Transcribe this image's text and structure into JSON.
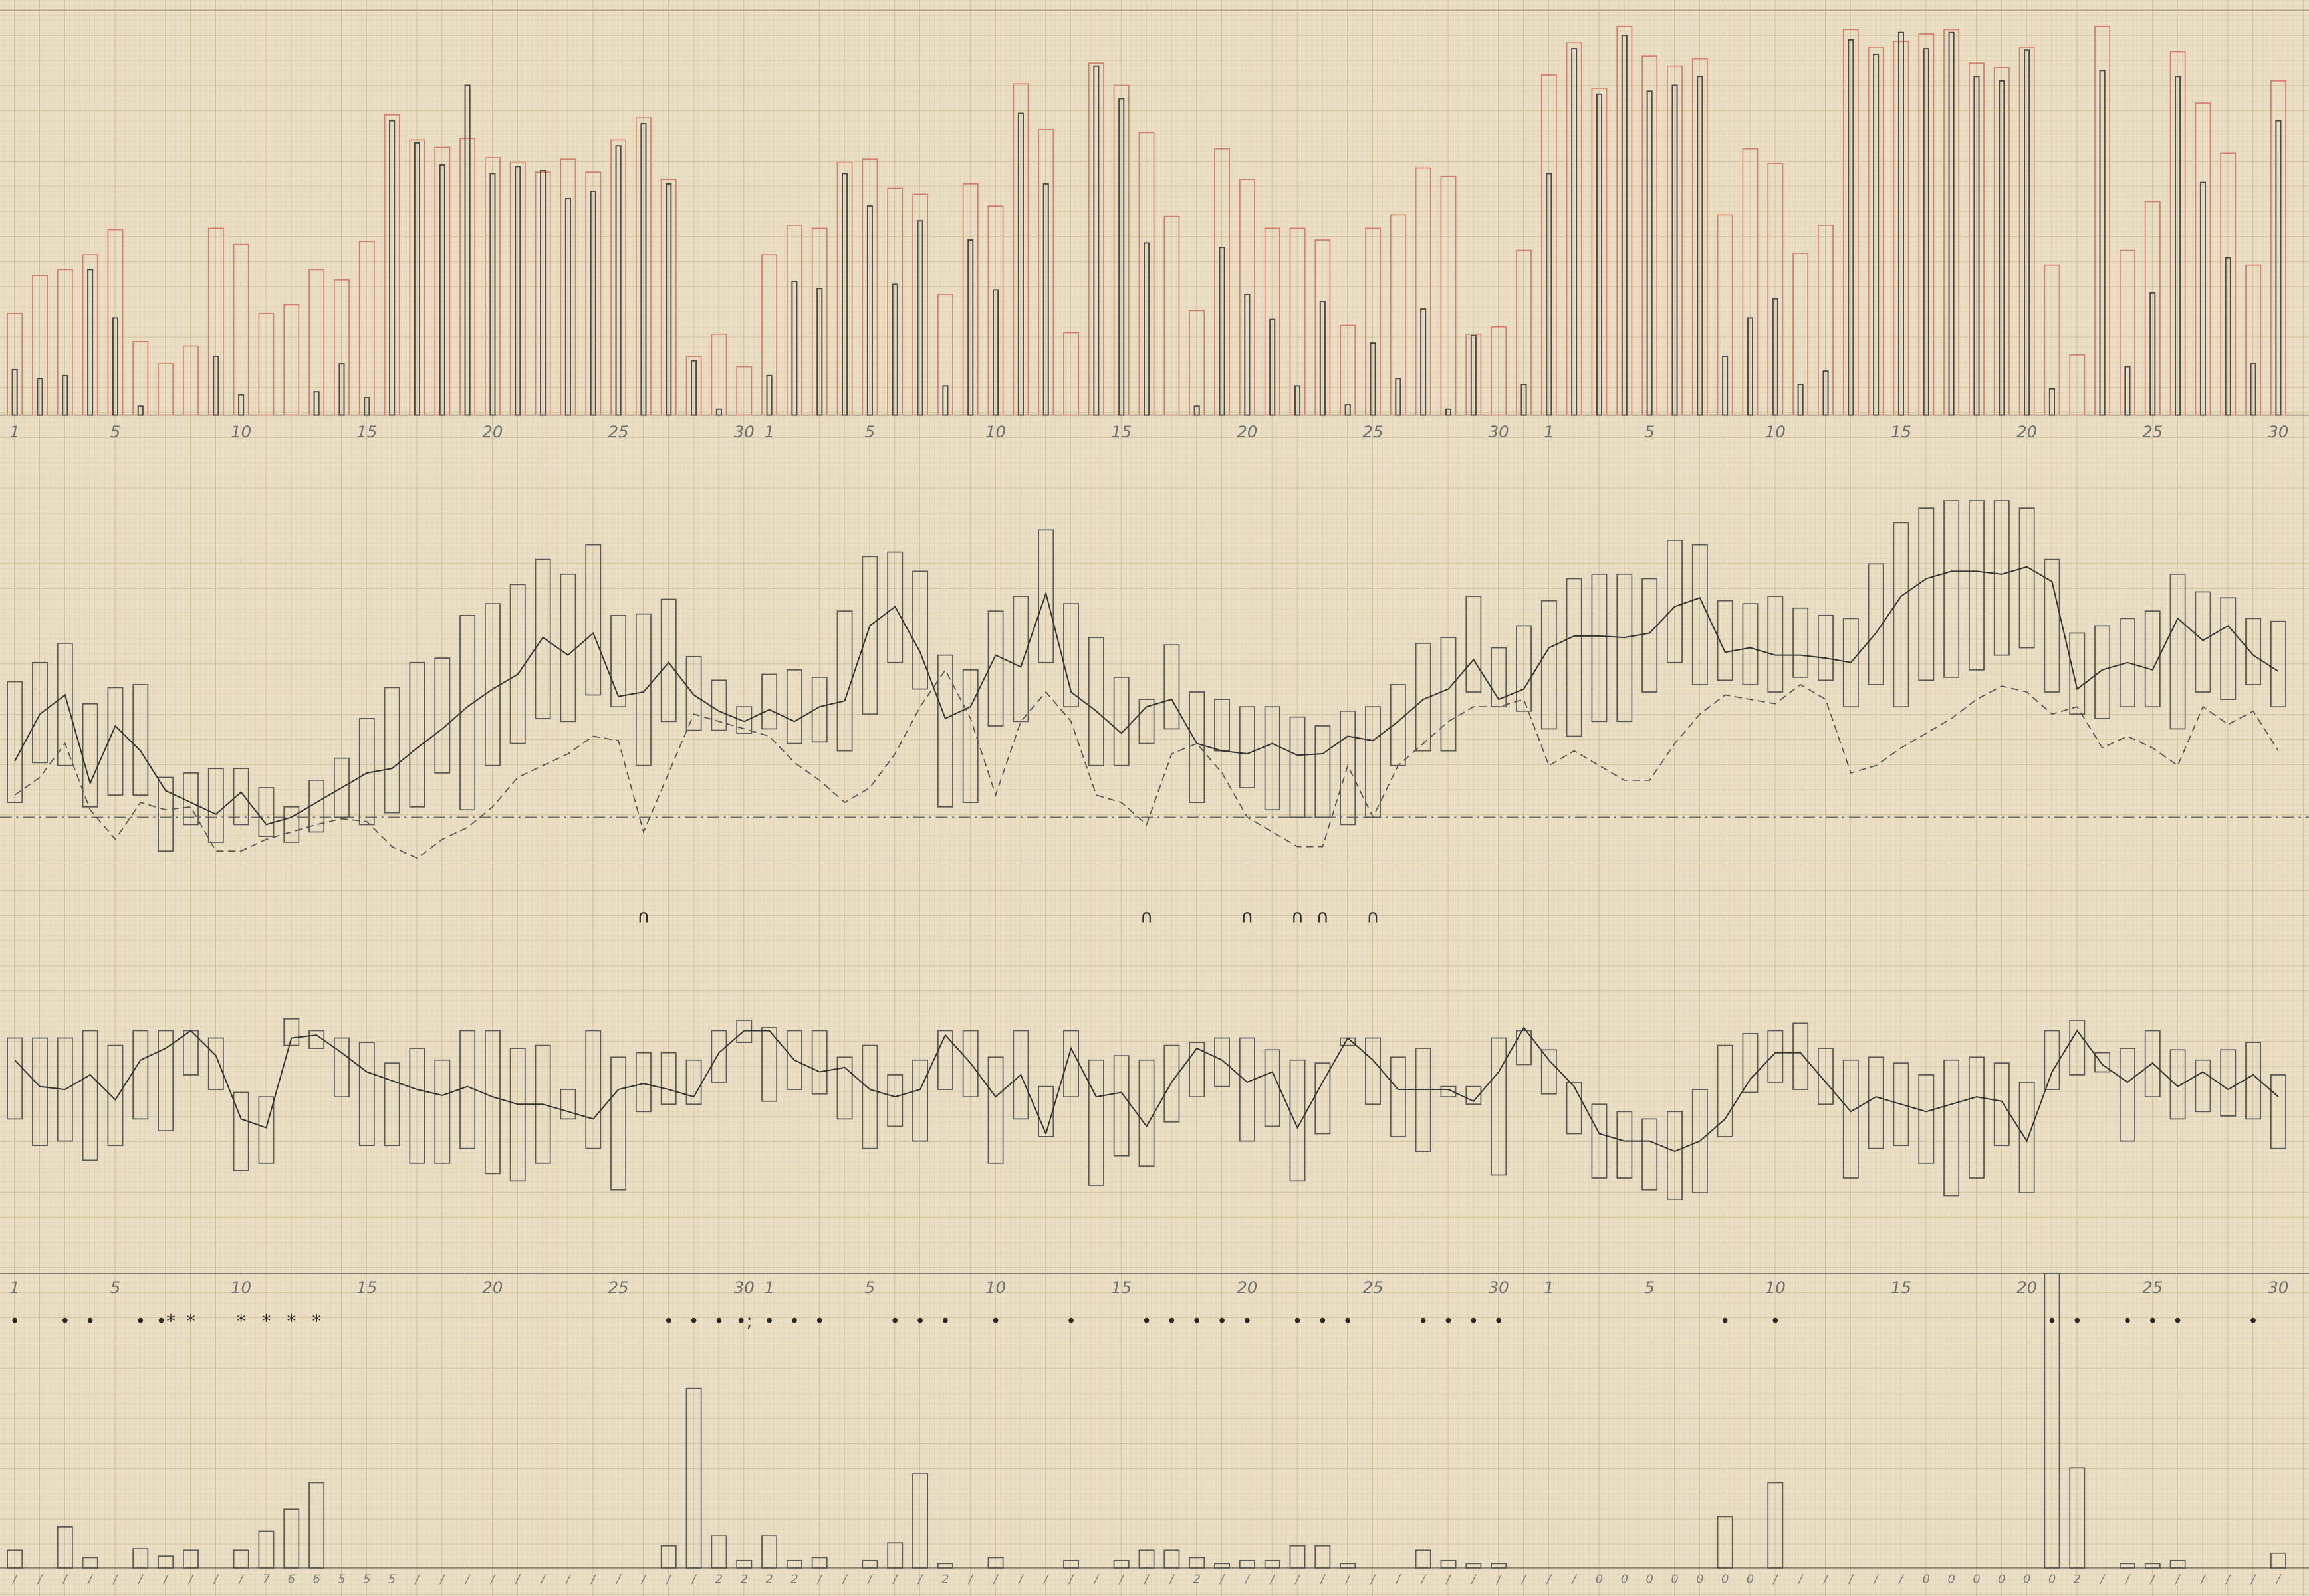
{
  "chart_data": [
    {
      "type": "bar",
      "categories": [
        1,
        null,
        null,
        null,
        5,
        null,
        null,
        null,
        null,
        10,
        null,
        null,
        null,
        null,
        15,
        null,
        null,
        null,
        null,
        20,
        null,
        null,
        null,
        null,
        25,
        null,
        null,
        null,
        null,
        30,
        1,
        null,
        null,
        null,
        5,
        null,
        null,
        null,
        null,
        10,
        null,
        null,
        null,
        null,
        15,
        null,
        null,
        null,
        null,
        20,
        null,
        null,
        null,
        null,
        25,
        null,
        null,
        null,
        null,
        30,
        null,
        1,
        null,
        null,
        null,
        5,
        null,
        null,
        null,
        null,
        10,
        null,
        null,
        null,
        null,
        15,
        null,
        null,
        null,
        null,
        20,
        null,
        null,
        null,
        null,
        25,
        null,
        null,
        null,
        null,
        30
      ],
      "series": [
        {
          "color": "#d4806f",
          "values": [
            69,
            95,
            99,
            109,
            126,
            50,
            35,
            47,
            127,
            116,
            69,
            75,
            99,
            92,
            118,
            204,
            187,
            182,
            188,
            175,
            172,
            165,
            174,
            165,
            187,
            202,
            160,
            40,
            55,
            33,
            109,
            129,
            127,
            172,
            174,
            154,
            150,
            82,
            157,
            142,
            225,
            194,
            56,
            239,
            224,
            192,
            135,
            71,
            181,
            160,
            127,
            127,
            119,
            61,
            127,
            136,
            168,
            162,
            55,
            60,
            112,
            231,
            253,
            222,
            264,
            244,
            237,
            242,
            136,
            181,
            171,
            110,
            129,
            262,
            250,
            254,
            259,
            262,
            239,
            236,
            250,
            102,
            41,
            264,
            112,
            145,
            247,
            212,
            178,
            102,
            227
          ]
        },
        {
          "color": "#4a4a4a",
          "values": [
            31,
            25,
            27,
            99,
            66,
            6,
            0,
            0,
            40,
            14,
            0,
            0,
            16,
            35,
            12,
            200,
            185,
            170,
            224,
            164,
            169,
            166,
            147,
            152,
            183,
            198,
            157,
            37,
            4,
            0,
            27,
            91,
            86,
            164,
            142,
            89,
            132,
            20,
            119,
            85,
            205,
            157,
            0,
            237,
            215,
            117,
            0,
            6,
            114,
            82,
            65,
            20,
            77,
            7,
            49,
            25,
            72,
            4,
            54,
            0,
            21,
            164,
            249,
            218,
            258,
            220,
            224,
            230,
            40,
            66,
            79,
            21,
            30,
            255,
            245,
            260,
            249,
            260,
            230,
            227,
            248,
            18,
            0,
            234,
            33,
            83,
            230,
            158,
            107,
            35,
            200
          ]
        }
      ],
      "ylim": [
        0,
        270
      ]
    },
    {
      "type": "range",
      "color": "#5a5a5a",
      "high": [
        137,
        150,
        163,
        122,
        133,
        135,
        72,
        75,
        78,
        78,
        65,
        52,
        70,
        85,
        112,
        133,
        150,
        153,
        182,
        190,
        203,
        220,
        210,
        230,
        182,
        183,
        193,
        154,
        138,
        120,
        142,
        145,
        140,
        185,
        222,
        225,
        212,
        155,
        145,
        185,
        195,
        240,
        190,
        167,
        140,
        125,
        162,
        130,
        125,
        120,
        120,
        113,
        107,
        117,
        120,
        135,
        163,
        167,
        195,
        160,
        175,
        192,
        207,
        210,
        210,
        207,
        233,
        230,
        192,
        190,
        195,
        187,
        182,
        180,
        217,
        245,
        255,
        260,
        260,
        260,
        255,
        220,
        170,
        175,
        180,
        185,
        210,
        198,
        194,
        180,
        178
      ],
      "low": [
        55,
        82,
        80,
        52,
        60,
        60,
        22,
        40,
        28,
        40,
        32,
        28,
        35,
        45,
        40,
        48,
        52,
        75,
        50,
        80,
        95,
        112,
        110,
        128,
        120,
        80,
        110,
        104,
        104,
        102,
        105,
        95,
        96,
        90,
        115,
        150,
        132,
        52,
        55,
        107,
        110,
        150,
        120,
        80,
        80,
        95,
        105,
        55,
        90,
        65,
        50,
        45,
        45,
        40,
        45,
        80,
        90,
        90,
        130,
        120,
        117,
        105,
        100,
        110,
        110,
        130,
        150,
        135,
        138,
        135,
        130,
        140,
        138,
        120,
        135,
        120,
        138,
        140,
        145,
        155,
        160,
        130,
        115,
        112,
        120,
        120,
        105,
        130,
        125,
        135,
        120
      ],
      "line": [
        83,
        115,
        128,
        68,
        107,
        90,
        63,
        55,
        47,
        62,
        40,
        45,
        55,
        65,
        75,
        78,
        92,
        105,
        120,
        132,
        142,
        167,
        155,
        170,
        127,
        130,
        150,
        128,
        117,
        110,
        118,
        110,
        120,
        124,
        175,
        188,
        157,
        112,
        120,
        155,
        147,
        197,
        130,
        117,
        102,
        120,
        125,
        95,
        90,
        88,
        95,
        87,
        88,
        100,
        97,
        110,
        125,
        132,
        152,
        125,
        132,
        160,
        168,
        168,
        167,
        170,
        188,
        194,
        157,
        160,
        155,
        155,
        153,
        150,
        170,
        195,
        207,
        212,
        212,
        210,
        215,
        205,
        132,
        145,
        150,
        145,
        180,
        165,
        175,
        155,
        144
      ],
      "line2": [
        60,
        72,
        95,
        50,
        30,
        55,
        50,
        52,
        22,
        22,
        30,
        35,
        40,
        44,
        42,
        25,
        17,
        30,
        38,
        52,
        72,
        80,
        88,
        100,
        97,
        35,
        75,
        115,
        110,
        105,
        100,
        82,
        70,
        55,
        65,
        88,
        120,
        145,
        112,
        60,
        110,
        130,
        110,
        60,
        55,
        40,
        88,
        95,
        75,
        45,
        35,
        25,
        25,
        80,
        45,
        80,
        95,
        110,
        120,
        120,
        125,
        80,
        90,
        80,
        70,
        70,
        95,
        115,
        128,
        125,
        122,
        135,
        125,
        75,
        80,
        92,
        102,
        112,
        125,
        134,
        130,
        115,
        120,
        92,
        100,
        92,
        80,
        120,
        108,
        117,
        90
      ],
      "reference": 45,
      "symbols": [
        null,
        null,
        null,
        null,
        null,
        null,
        null,
        null,
        null,
        null,
        null,
        null,
        null,
        null,
        null,
        null,
        null,
        null,
        null,
        null,
        null,
        null,
        null,
        null,
        null,
        "∩",
        null,
        null,
        null,
        null,
        null,
        null,
        null,
        null,
        null,
        null,
        null,
        null,
        null,
        null,
        null,
        null,
        null,
        null,
        null,
        "∩",
        null,
        null,
        null,
        "∩",
        null,
        "∩",
        "∩",
        null,
        "∩",
        null,
        null,
        null,
        null,
        null,
        null,
        null,
        null,
        null,
        null,
        null,
        null,
        null,
        null,
        null,
        null,
        null,
        null,
        null,
        null,
        null,
        null,
        null,
        null,
        null,
        null,
        null,
        null,
        null,
        null,
        null,
        null,
        null,
        null,
        null,
        null
      ],
      "ylim": [
        0,
        270
      ]
    },
    {
      "type": "range",
      "color": "#5a5a5a",
      "high": [
        115,
        115,
        115,
        120,
        110,
        120,
        120,
        120,
        115,
        78,
        75,
        128,
        120,
        115,
        112,
        98,
        108,
        100,
        120,
        120,
        108,
        110,
        80,
        120,
        102,
        105,
        105,
        100,
        120,
        127,
        122,
        120,
        120,
        102,
        110,
        90,
        100,
        120,
        120,
        102,
        120,
        82,
        120,
        100,
        103,
        100,
        110,
        112,
        115,
        115,
        107,
        100,
        98,
        115,
        115,
        102,
        108,
        82,
        82,
        115,
        120,
        107,
        85,
        70,
        65,
        60,
        65,
        80,
        110,
        118,
        120,
        125,
        108,
        100,
        102,
        98,
        90,
        100,
        102,
        98,
        85,
        120,
        127,
        105,
        108,
        120,
        107,
        100,
        107,
        112,
        90
      ],
      "low": [
        60,
        42,
        45,
        32,
        42,
        60,
        52,
        90,
        80,
        25,
        30,
        110,
        108,
        75,
        42,
        42,
        30,
        30,
        40,
        23,
        18,
        30,
        60,
        40,
        12,
        65,
        70,
        70,
        85,
        112,
        72,
        80,
        77,
        60,
        40,
        55,
        45,
        80,
        75,
        30,
        60,
        48,
        75,
        15,
        35,
        28,
        58,
        75,
        82,
        45,
        55,
        18,
        50,
        110,
        70,
        48,
        38,
        75,
        70,
        22,
        97,
        77,
        50,
        20,
        20,
        12,
        5,
        10,
        48,
        78,
        85,
        80,
        70,
        20,
        40,
        42,
        30,
        8,
        20,
        42,
        10,
        80,
        90,
        92,
        45,
        75,
        60,
        65,
        62,
        60,
        40
      ],
      "line": [
        100,
        82,
        80,
        90,
        73,
        100,
        108,
        120,
        103,
        60,
        54,
        115,
        117,
        105,
        92,
        86,
        80,
        76,
        82,
        75,
        70,
        70,
        65,
        60,
        80,
        84,
        80,
        75,
        105,
        120,
        120,
        100,
        92,
        95,
        80,
        75,
        80,
        117,
        98,
        75,
        90,
        50,
        108,
        75,
        78,
        55,
        85,
        108,
        100,
        85,
        92,
        54,
        85,
        115,
        100,
        80,
        80,
        80,
        72,
        92,
        122,
        100,
        82,
        50,
        45,
        45,
        38,
        45,
        60,
        87,
        105,
        105,
        85,
        65,
        75,
        70,
        65,
        70,
        75,
        72,
        45,
        92,
        120,
        97,
        85,
        98,
        82,
        92,
        80,
        90,
        75
      ],
      "ylim": [
        0,
        130
      ]
    },
    {
      "type": "bar",
      "color": "#5a5a5a",
      "categories": [
        1,
        null,
        null,
        null,
        5,
        null,
        null,
        null,
        null,
        10,
        null,
        null,
        null,
        null,
        15,
        null,
        null,
        null,
        null,
        20,
        null,
        null,
        null,
        null,
        25,
        null,
        null,
        null,
        null,
        30,
        1,
        null,
        null,
        null,
        5,
        null,
        null,
        null,
        null,
        10,
        null,
        null,
        null,
        null,
        15,
        null,
        null,
        null,
        null,
        20,
        null,
        null,
        null,
        null,
        25,
        null,
        null,
        null,
        null,
        30,
        null,
        1,
        null,
        null,
        null,
        5,
        null,
        null,
        null,
        null,
        10,
        null,
        null,
        null,
        null,
        15,
        null,
        null,
        null,
        null,
        20,
        null,
        null,
        null,
        null,
        25,
        null,
        null,
        null,
        null,
        30
      ],
      "values": [
        12,
        0,
        28,
        7,
        0,
        13,
        8,
        12,
        0,
        12,
        25,
        40,
        58,
        0,
        0,
        0,
        0,
        0,
        0,
        0,
        0,
        0,
        0,
        0,
        0,
        0,
        15,
        122,
        22,
        5,
        22,
        5,
        7,
        0,
        5,
        17,
        64,
        3,
        0,
        7,
        0,
        0,
        5,
        0,
        5,
        12,
        12,
        7,
        3,
        5,
        5,
        15,
        15,
        3,
        0,
        0,
        12,
        5,
        3,
        3,
        0,
        0,
        0,
        0,
        0,
        0,
        0,
        0,
        35,
        0,
        58,
        0,
        0,
        0,
        0,
        0,
        0,
        0,
        0,
        0,
        0,
        200,
        68,
        0,
        3,
        3,
        5,
        0,
        0,
        0,
        10
      ],
      "symbols": [
        "•",
        null,
        "•",
        "•",
        null,
        "•",
        "•*",
        "*",
        null,
        "*",
        "*",
        "*",
        "*",
        null,
        null,
        null,
        null,
        null,
        null,
        null,
        null,
        null,
        null,
        null,
        null,
        null,
        "•",
        "•",
        "•",
        "•;",
        "•",
        "•",
        "•",
        null,
        null,
        "•",
        "•",
        "•",
        null,
        "•",
        null,
        null,
        "•",
        null,
        null,
        "•",
        "•",
        "•",
        "•",
        "•",
        null,
        "•",
        "•",
        "•",
        null,
        null,
        "•",
        "•",
        "•",
        "•",
        null,
        null,
        null,
        null,
        null,
        null,
        null,
        null,
        "•",
        null,
        "•",
        null,
        null,
        null,
        null,
        null,
        null,
        null,
        null,
        null,
        null,
        "•",
        "•",
        null,
        "•",
        "•",
        "•",
        null,
        null,
        "•",
        null
      ],
      "codes": [
        "/",
        "/",
        "/",
        "/",
        "/",
        "/",
        "/",
        "/",
        "/",
        "/",
        "7",
        "6",
        "6",
        "5",
        "5",
        "5",
        "/",
        "/",
        "/",
        "/",
        "/",
        "/",
        "/",
        "/",
        "/",
        "/",
        "/",
        "/",
        "2",
        "2",
        "2",
        "2",
        "/",
        "/",
        "/",
        "/",
        "/",
        "2",
        "/",
        "/",
        "/",
        "/",
        "/",
        "/",
        "/",
        "/",
        "/",
        "2",
        "/",
        "/",
        "/",
        "/",
        "/",
        "/",
        "/",
        "/",
        "/",
        "/",
        "/",
        "/",
        "/",
        "/",
        "/",
        "0",
        "0",
        "0",
        "0",
        "0",
        "0",
        "0",
        "/",
        "/",
        "/",
        "/",
        "/",
        "/",
        "0",
        "0",
        "0",
        "0",
        "0",
        "0",
        "2",
        "/",
        "/",
        "/",
        "/",
        "/",
        "/",
        "/",
        "/"
      ],
      "ylim": [
        0,
        210
      ]
    }
  ]
}
